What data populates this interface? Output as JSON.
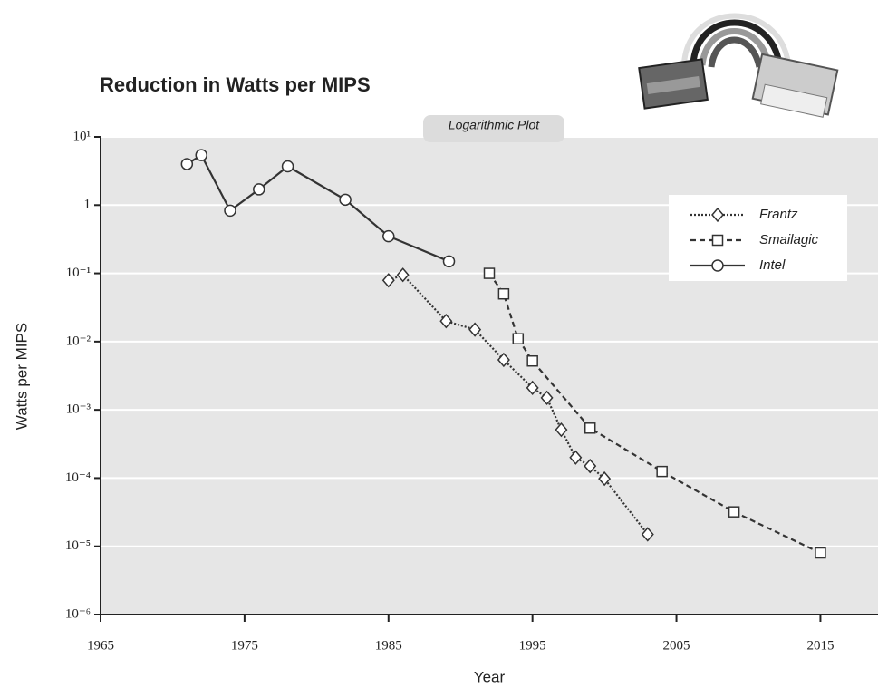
{
  "chart_data": {
    "type": "line",
    "title": "Reduction in Watts per MIPS",
    "annotation": "Logarithmic Plot",
    "x_label": "Year",
    "y_label": "Watts per MIPS",
    "xlim": [
      1965,
      2019
    ],
    "xticks": [
      1965,
      1975,
      1985,
      1995,
      2005,
      2015
    ],
    "ylim": [
      1e-06,
      10
    ],
    "log_y": true,
    "yticks": [
      {
        "value": 10,
        "label": "10¹"
      },
      1,
      {
        "value": 0.1,
        "label": "10⁻¹"
      },
      {
        "value": 0.01,
        "label": "10⁻²"
      },
      {
        "value": 0.001,
        "label": "10⁻³"
      },
      {
        "value": 0.0001,
        "label": "10⁻⁴"
      },
      {
        "value": 1e-05,
        "label": "10⁻⁵"
      },
      {
        "value": 1e-06,
        "label": "10⁻⁶"
      }
    ],
    "grid": true,
    "legend": "upper right",
    "series": [
      {
        "name": "Frantz",
        "color": "#333333",
        "dash": "dotted",
        "marker": "diamond",
        "x": [
          1985,
          1986,
          1989,
          1991,
          1993,
          1995,
          1996,
          1997,
          1998,
          1999,
          2000,
          2003
        ],
        "values": [
          0.079,
          0.095,
          0.02,
          0.015,
          0.0054,
          0.0021,
          0.0015,
          0.00051,
          0.0002,
          0.00015,
          9.8e-05,
          1.5e-05
        ]
      },
      {
        "name": "Smailagic",
        "color": "#333333",
        "dash": "dashed",
        "marker": "square",
        "x": [
          1992,
          1993,
          1994,
          1995,
          1999,
          2004,
          2009,
          2015
        ],
        "values": [
          0.1,
          0.05,
          0.011,
          0.0052,
          0.00054,
          0.000125,
          3.2e-05,
          8e-06
        ]
      },
      {
        "name": "Intel",
        "color": "#333333",
        "dash": "solid",
        "marker": "circle",
        "x": [
          1971,
          1972,
          1974,
          1976,
          1978,
          1982,
          1985,
          1989.2
        ],
        "values": [
          4,
          5.4,
          0.83,
          1.7,
          3.7,
          1.2,
          0.35,
          0.15
        ]
      }
    ]
  }
}
